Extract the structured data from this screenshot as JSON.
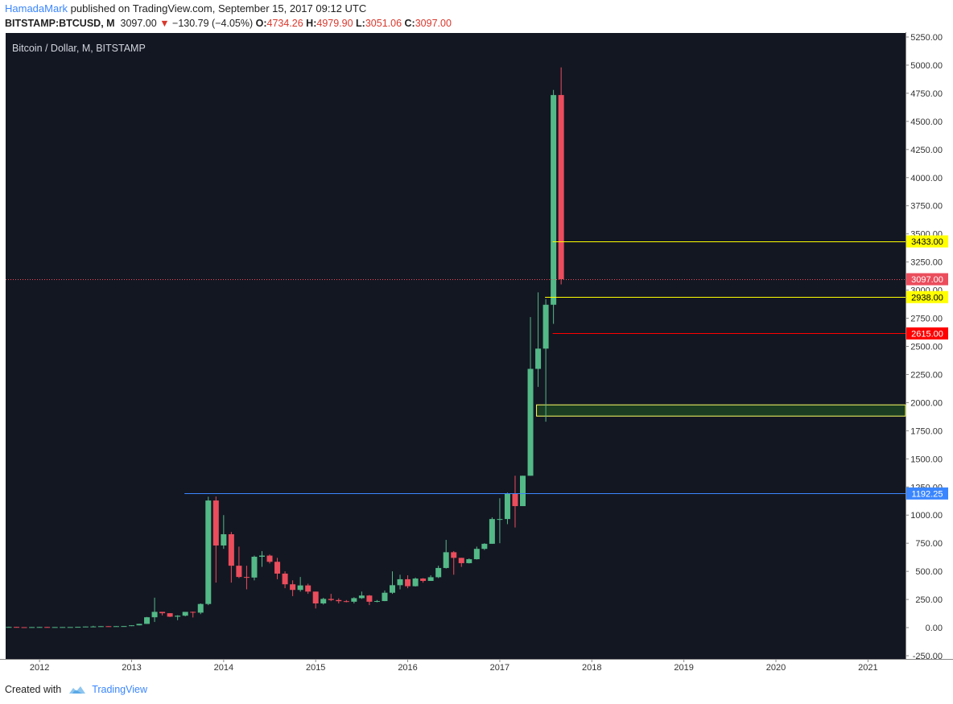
{
  "header": {
    "author": "HamadaMark",
    "published_text": " published on TradingView.com, September 15, 2017 09:12 UTC",
    "symbol": "BITSTAMP:BTCUSD, M",
    "last": "3097.00",
    "change": "−130.79 (−4.05%)",
    "o_label": "O:",
    "o_value": "4734.26",
    "h_label": "H:",
    "h_value": "4979.90",
    "l_label": "L:",
    "l_value": "3051.06",
    "c_label": "C:",
    "c_value": "3097.00"
  },
  "footer": {
    "created_with": "Created with",
    "brand": "TradingView"
  },
  "colors": {
    "background": "#131722",
    "up": "#53b987",
    "down": "#eb4d5c",
    "yellow_line": "#ffff00",
    "red_line": "#ff0000",
    "blue_line": "#3a86ff",
    "zone_fill": "#1b3d22",
    "zone_border": "#ffff66"
  },
  "chart_data": {
    "type": "candlestick",
    "title": "Bitcoin / Dollar, M, BITSTAMP",
    "timeframe": "M",
    "x_axis": {
      "tick_labels": [
        "2012",
        "2013",
        "2014",
        "2015",
        "2016",
        "2017",
        "2018",
        "2019",
        "2020",
        "2021"
      ]
    },
    "y_axis": {
      "range": [
        -250,
        5250
      ],
      "tick_labels": [
        "5250.00",
        "5000.00",
        "4750.00",
        "4500.00",
        "4250.00",
        "4000.00",
        "3750.00",
        "3500.00",
        "3250.00",
        "3000.00",
        "2750.00",
        "2500.00",
        "2250.00",
        "2000.00",
        "1750.00",
        "1500.00",
        "1250.00",
        "1000.00",
        "750.00",
        "500.00",
        "250.00",
        "0.00",
        "-250.00"
      ]
    },
    "candles": [
      {
        "date": "2011-09",
        "o": 5,
        "h": 8,
        "l": 4,
        "c": 6
      },
      {
        "date": "2011-10",
        "o": 6,
        "h": 7,
        "l": 2,
        "c": 4
      },
      {
        "date": "2011-11",
        "o": 4,
        "h": 4,
        "l": 2,
        "c": 3
      },
      {
        "date": "2011-12",
        "o": 3,
        "h": 5,
        "l": 3,
        "c": 4.7
      },
      {
        "date": "2012-01",
        "o": 4.7,
        "h": 7,
        "l": 4,
        "c": 5.5
      },
      {
        "date": "2012-02",
        "o": 5.5,
        "h": 6,
        "l": 4,
        "c": 4.9
      },
      {
        "date": "2012-03",
        "o": 4.9,
        "h": 5.5,
        "l": 4.5,
        "c": 4.9
      },
      {
        "date": "2012-04",
        "o": 4.9,
        "h": 5.3,
        "l": 4.7,
        "c": 5
      },
      {
        "date": "2012-05",
        "o": 5,
        "h": 5.2,
        "l": 4.9,
        "c": 5.2
      },
      {
        "date": "2012-06",
        "o": 5.2,
        "h": 7,
        "l": 5,
        "c": 6.7
      },
      {
        "date": "2012-07",
        "o": 6.7,
        "h": 9.5,
        "l": 6.5,
        "c": 9.4
      },
      {
        "date": "2012-08",
        "o": 9.4,
        "h": 16,
        "l": 7,
        "c": 10
      },
      {
        "date": "2012-09",
        "o": 10,
        "h": 12.8,
        "l": 9.8,
        "c": 12.4
      },
      {
        "date": "2012-10",
        "o": 12.4,
        "h": 12.6,
        "l": 10.5,
        "c": 11.2
      },
      {
        "date": "2012-11",
        "o": 11.2,
        "h": 12.9,
        "l": 10.1,
        "c": 12.6
      },
      {
        "date": "2012-12",
        "o": 12.6,
        "h": 14,
        "l": 12.3,
        "c": 13.4
      },
      {
        "date": "2013-01",
        "o": 13.4,
        "h": 21,
        "l": 13.1,
        "c": 20.4
      },
      {
        "date": "2013-02",
        "o": 20.4,
        "h": 34,
        "l": 19.5,
        "c": 33
      },
      {
        "date": "2013-03",
        "o": 33,
        "h": 95,
        "l": 33,
        "c": 92
      },
      {
        "date": "2013-04",
        "o": 92,
        "h": 266,
        "l": 50,
        "c": 140
      },
      {
        "date": "2013-05",
        "o": 140,
        "h": 140,
        "l": 108,
        "c": 128
      },
      {
        "date": "2013-06",
        "o": 128,
        "h": 129,
        "l": 94,
        "c": 97
      },
      {
        "date": "2013-07",
        "o": 97,
        "h": 110,
        "l": 66,
        "c": 106
      },
      {
        "date": "2013-08",
        "o": 106,
        "h": 130,
        "l": 100,
        "c": 140
      },
      {
        "date": "2013-09",
        "o": 140,
        "h": 142,
        "l": 90,
        "c": 133
      },
      {
        "date": "2013-10",
        "o": 133,
        "h": 215,
        "l": 120,
        "c": 210
      },
      {
        "date": "2013-11",
        "o": 210,
        "h": 1163,
        "l": 200,
        "c": 1130
      },
      {
        "date": "2013-12",
        "o": 1130,
        "h": 1165,
        "l": 400,
        "c": 730
      },
      {
        "date": "2014-01",
        "o": 730,
        "h": 1000,
        "l": 700,
        "c": 830
      },
      {
        "date": "2014-02",
        "o": 830,
        "h": 850,
        "l": 400,
        "c": 550
      },
      {
        "date": "2014-03",
        "o": 550,
        "h": 720,
        "l": 440,
        "c": 450
      },
      {
        "date": "2014-04",
        "o": 450,
        "h": 550,
        "l": 340,
        "c": 445
      },
      {
        "date": "2014-05",
        "o": 445,
        "h": 640,
        "l": 420,
        "c": 630
      },
      {
        "date": "2014-06",
        "o": 630,
        "h": 680,
        "l": 540,
        "c": 640
      },
      {
        "date": "2014-07",
        "o": 640,
        "h": 650,
        "l": 570,
        "c": 585
      },
      {
        "date": "2014-08",
        "o": 585,
        "h": 620,
        "l": 430,
        "c": 480
      },
      {
        "date": "2014-09",
        "o": 480,
        "h": 500,
        "l": 350,
        "c": 385
      },
      {
        "date": "2014-10",
        "o": 385,
        "h": 420,
        "l": 280,
        "c": 335
      },
      {
        "date": "2014-11",
        "o": 335,
        "h": 450,
        "l": 320,
        "c": 375
      },
      {
        "date": "2014-12",
        "o": 375,
        "h": 390,
        "l": 300,
        "c": 320
      },
      {
        "date": "2015-01",
        "o": 320,
        "h": 320,
        "l": 170,
        "c": 215
      },
      {
        "date": "2015-02",
        "o": 215,
        "h": 265,
        "l": 205,
        "c": 255
      },
      {
        "date": "2015-03",
        "o": 255,
        "h": 300,
        "l": 235,
        "c": 245
      },
      {
        "date": "2015-04",
        "o": 245,
        "h": 260,
        "l": 215,
        "c": 235
      },
      {
        "date": "2015-05",
        "o": 235,
        "h": 245,
        "l": 225,
        "c": 230
      },
      {
        "date": "2015-06",
        "o": 230,
        "h": 270,
        "l": 215,
        "c": 262
      },
      {
        "date": "2015-07",
        "o": 262,
        "h": 320,
        "l": 255,
        "c": 285
      },
      {
        "date": "2015-08",
        "o": 285,
        "h": 290,
        "l": 200,
        "c": 230
      },
      {
        "date": "2015-09",
        "o": 230,
        "h": 245,
        "l": 225,
        "c": 236
      },
      {
        "date": "2015-10",
        "o": 236,
        "h": 330,
        "l": 235,
        "c": 310
      },
      {
        "date": "2015-11",
        "o": 310,
        "h": 500,
        "l": 300,
        "c": 377
      },
      {
        "date": "2015-12",
        "o": 377,
        "h": 470,
        "l": 340,
        "c": 430
      },
      {
        "date": "2016-01",
        "o": 430,
        "h": 465,
        "l": 350,
        "c": 368
      },
      {
        "date": "2016-02",
        "o": 368,
        "h": 445,
        "l": 365,
        "c": 436
      },
      {
        "date": "2016-03",
        "o": 436,
        "h": 440,
        "l": 400,
        "c": 415
      },
      {
        "date": "2016-04",
        "o": 415,
        "h": 465,
        "l": 415,
        "c": 448
      },
      {
        "date": "2016-05",
        "o": 448,
        "h": 550,
        "l": 440,
        "c": 530
      },
      {
        "date": "2016-06",
        "o": 530,
        "h": 780,
        "l": 525,
        "c": 670
      },
      {
        "date": "2016-07",
        "o": 670,
        "h": 680,
        "l": 470,
        "c": 620
      },
      {
        "date": "2016-08",
        "o": 620,
        "h": 620,
        "l": 540,
        "c": 573
      },
      {
        "date": "2016-09",
        "o": 573,
        "h": 615,
        "l": 570,
        "c": 608
      },
      {
        "date": "2016-10",
        "o": 608,
        "h": 720,
        "l": 605,
        "c": 700
      },
      {
        "date": "2016-11",
        "o": 700,
        "h": 750,
        "l": 690,
        "c": 745
      },
      {
        "date": "2016-12",
        "o": 745,
        "h": 980,
        "l": 745,
        "c": 965
      },
      {
        "date": "2017-01",
        "o": 965,
        "h": 1150,
        "l": 750,
        "c": 965
      },
      {
        "date": "2017-02",
        "o": 965,
        "h": 1200,
        "l": 920,
        "c": 1190
      },
      {
        "date": "2017-03",
        "o": 1190,
        "h": 1350,
        "l": 890,
        "c": 1080
      },
      {
        "date": "2017-04",
        "o": 1080,
        "h": 1350,
        "l": 1080,
        "c": 1350
      },
      {
        "date": "2017-05",
        "o": 1350,
        "h": 2760,
        "l": 1350,
        "c": 2300
      },
      {
        "date": "2017-06",
        "o": 2300,
        "h": 2980,
        "l": 2140,
        "c": 2480
      },
      {
        "date": "2017-07",
        "o": 2480,
        "h": 2920,
        "l": 1830,
        "c": 2870
      },
      {
        "date": "2017-08",
        "o": 2870,
        "h": 4780,
        "l": 2700,
        "c": 4734
      },
      {
        "date": "2017-09",
        "o": 4734.26,
        "h": 4979.9,
        "l": 3051.06,
        "c": 3097
      }
    ],
    "horizontal_lines": [
      {
        "value": 3433,
        "label": "3433.00",
        "color": "yellow",
        "start": "2017-08"
      },
      {
        "value": 3097,
        "label": "3097.00",
        "color": "last-price",
        "start": "2011-09"
      },
      {
        "value": 2938,
        "label": "2938.00",
        "color": "yellow",
        "start": "2017-07"
      },
      {
        "value": 2615,
        "label": "2615.00",
        "color": "red",
        "start": "2017-08"
      },
      {
        "value": 1192.25,
        "label": "1192.25",
        "color": "blue",
        "start": "2013-08"
      }
    ],
    "zones": [
      {
        "from": 1880,
        "to": 1980,
        "start": "2017-06",
        "color": "green"
      }
    ]
  }
}
